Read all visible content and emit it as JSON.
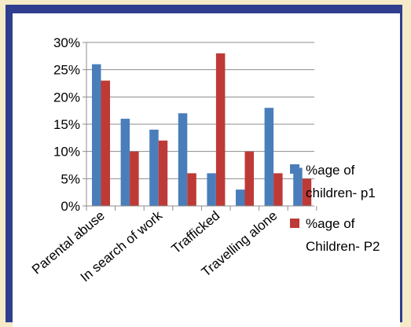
{
  "chart_data": {
    "type": "bar",
    "categories": [
      "Parental abuse",
      "",
      "In search of work",
      "",
      "Trafficked",
      "",
      "Travelling alone",
      ""
    ],
    "series": [
      {
        "name": "%age of children- p1",
        "values": [
          26,
          16,
          14,
          17,
          6,
          3,
          18,
          7
        ],
        "color": "#4a7ebb"
      },
      {
        "name": "%age of Children- P2",
        "values": [
          23,
          10,
          12,
          6,
          28,
          10,
          6,
          5
        ],
        "color": "#be3a36"
      }
    ],
    "ylim": [
      0,
      30
    ],
    "ytick_labels": [
      "0%",
      "5%",
      "10%",
      "15%",
      "20%",
      "25%",
      "30%"
    ],
    "ytick_values": [
      0,
      5,
      10,
      15,
      20,
      25,
      30
    ],
    "grid": true,
    "legend_position": "right",
    "legend_items": [
      {
        "line1": "%age of",
        "line2": "children- p1"
      },
      {
        "line1": "%age of",
        "line2": "Children- P2"
      }
    ]
  }
}
